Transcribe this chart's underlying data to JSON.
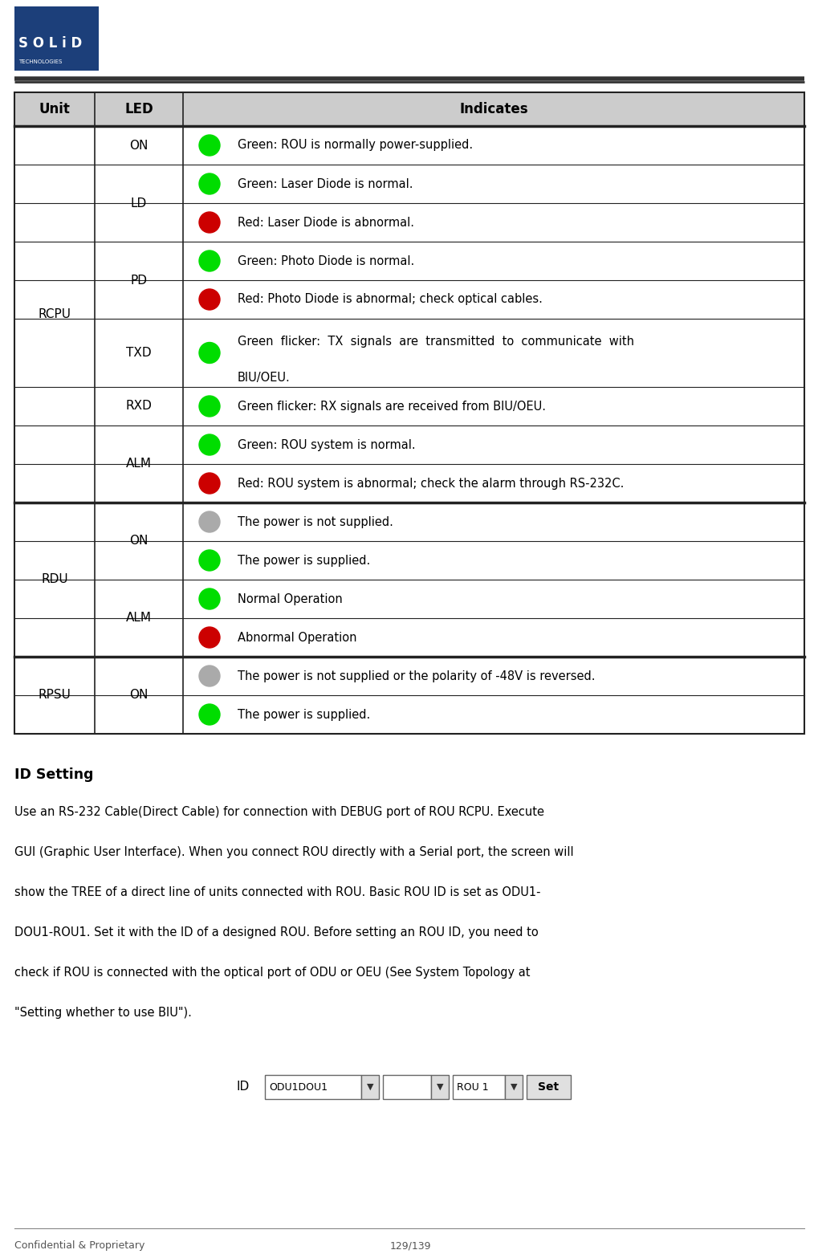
{
  "bg_color": "#ffffff",
  "header_bg": "#cccccc",
  "table_border_color": "#222222",
  "logo_box_color": "#1c3f7a",
  "footer_text": "Confidential & Proprietary",
  "footer_page": "129/139",
  "title_text": "ID Setting",
  "id_setting_body_lines": [
    "Use an RS-232 Cable(Direct Cable) for connection with DEBUG port of ROU RCPU. Execute",
    "GUI (Graphic User Interface). When you connect ROU directly with a Serial port, the screen will",
    "show the TREE of a direct line of units connected with ROU. Basic ROU ID is set as ODU1-",
    "DOU1-ROU1. Set it with the ID of a designed ROU. Before setting an ROU ID, you need to",
    "check if ROU is connected with the optical port of ODU or OEU (See System Topology at",
    "\"Setting whether to use BIU\")."
  ],
  "col_headers": [
    "Unit",
    "LED",
    "Indicates"
  ],
  "rows": [
    {
      "unit": "RCPU",
      "led": "ON",
      "circle_color": "#00dd00",
      "text": "Green: ROU is normally power-supplied.",
      "unit_span": 9,
      "led_span": 1,
      "tall": false
    },
    {
      "unit": "",
      "led": "LD",
      "circle_color": "#00dd00",
      "text": "Green: Laser Diode is normal.",
      "unit_span": 0,
      "led_span": 2,
      "tall": false
    },
    {
      "unit": "",
      "led": "",
      "circle_color": "#cc0000",
      "text": "Red: Laser Diode is abnormal.",
      "unit_span": 0,
      "led_span": 0,
      "tall": false
    },
    {
      "unit": "",
      "led": "PD",
      "circle_color": "#00dd00",
      "text": "Green: Photo Diode is normal.",
      "unit_span": 0,
      "led_span": 2,
      "tall": false
    },
    {
      "unit": "",
      "led": "",
      "circle_color": "#cc0000",
      "text": "Red: Photo Diode is abnormal; check optical cables.",
      "unit_span": 0,
      "led_span": 0,
      "tall": false
    },
    {
      "unit": "",
      "led": "TXD",
      "circle_color": "#00dd00",
      "text": "Green  flicker:  TX  signals  are  transmitted  to  communicate  with\nBIU/OEU.",
      "unit_span": 0,
      "led_span": 1,
      "tall": true
    },
    {
      "unit": "",
      "led": "RXD",
      "circle_color": "#00dd00",
      "text": "Green flicker: RX signals are received from BIU/OEU.",
      "unit_span": 0,
      "led_span": 1,
      "tall": false
    },
    {
      "unit": "",
      "led": "ALM",
      "circle_color": "#00dd00",
      "text": "Green: ROU system is normal.",
      "unit_span": 0,
      "led_span": 2,
      "tall": false
    },
    {
      "unit": "",
      "led": "",
      "circle_color": "#cc0000",
      "text": "Red: ROU system is abnormal; check the alarm through RS-232C.",
      "unit_span": 0,
      "led_span": 0,
      "tall": false
    },
    {
      "unit": "RDU",
      "led": "ON",
      "circle_color": "#aaaaaa",
      "text": "The power is not supplied.",
      "unit_span": 4,
      "led_span": 2,
      "tall": false
    },
    {
      "unit": "",
      "led": "",
      "circle_color": "#00dd00",
      "text": "The power is supplied.",
      "unit_span": 0,
      "led_span": 0,
      "tall": false
    },
    {
      "unit": "",
      "led": "ALM",
      "circle_color": "#00dd00",
      "text": "Normal Operation",
      "unit_span": 0,
      "led_span": 2,
      "tall": false
    },
    {
      "unit": "",
      "led": "",
      "circle_color": "#cc0000",
      "text": "Abnormal Operation",
      "unit_span": 0,
      "led_span": 0,
      "tall": false
    },
    {
      "unit": "RPSU",
      "led": "ON",
      "circle_color": "#aaaaaa",
      "text": "The power is not supplied or the polarity of -48V is reversed.",
      "unit_span": 2,
      "led_span": 2,
      "tall": false
    },
    {
      "unit": "",
      "led": "",
      "circle_color": "#00dd00",
      "text": "The power is supplied.",
      "unit_span": 0,
      "led_span": 0,
      "tall": false
    }
  ]
}
